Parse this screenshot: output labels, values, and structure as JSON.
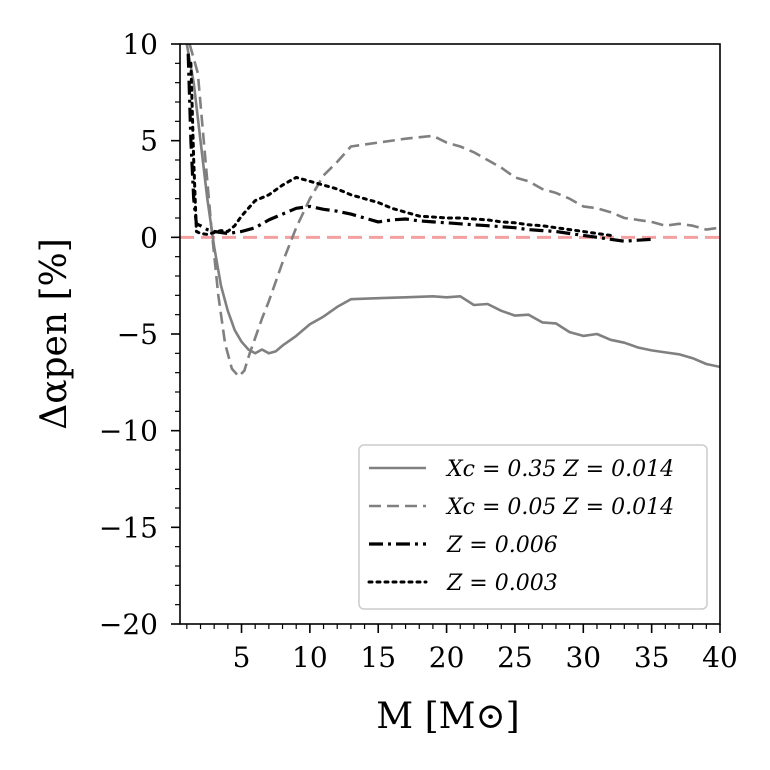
{
  "chart_data": {
    "type": "line",
    "xlabel": "M [M⊙]",
    "ylabel": "Δαpen [%]",
    "xlim": [
      0.5,
      40
    ],
    "ylim": [
      -20,
      10
    ],
    "xticks": [
      5,
      10,
      15,
      20,
      25,
      30,
      35,
      40
    ],
    "yticks": [
      -20,
      -15,
      -10,
      -5,
      0,
      5,
      10
    ],
    "xtick_labels": [
      "5",
      "10",
      "15",
      "20",
      "25",
      "30",
      "35",
      "40"
    ],
    "ytick_labels": [
      "−20",
      "−15",
      "−10",
      "−5",
      "0",
      "5",
      "10"
    ],
    "reference_line": {
      "y": 0,
      "color": "#f4a0a0",
      "style": "dashed"
    },
    "legend_position": "lower-right",
    "series": [
      {
        "name": "Xc = 0.35 Z = 0.014",
        "color": "#808080",
        "style": "solid",
        "x": [
          1.0,
          1.5,
          2.0,
          2.5,
          3.0,
          3.5,
          4.0,
          4.5,
          5.0,
          5.5,
          6.0,
          6.5,
          7.0,
          7.5,
          8.0,
          9.0,
          10.0,
          11.0,
          12.0,
          13.0,
          15.0,
          17.0,
          19.0,
          20.0,
          21.0,
          22.0,
          23.0,
          24.0,
          25.0,
          26.0,
          27.0,
          28.0,
          29.0,
          30.0,
          31.0,
          32.0,
          33.0,
          34.0,
          35.0,
          36.0,
          37.0,
          38.0,
          39.0,
          40.0
        ],
        "y": [
          10.0,
          8.0,
          5.0,
          2.0,
          -0.5,
          -2.5,
          -3.8,
          -4.8,
          -5.4,
          -5.8,
          -6.0,
          -5.8,
          -6.0,
          -5.9,
          -5.6,
          -5.1,
          -4.5,
          -4.1,
          -3.6,
          -3.2,
          -3.15,
          -3.1,
          -3.05,
          -3.1,
          -3.05,
          -3.5,
          -3.45,
          -3.8,
          -4.05,
          -4.0,
          -4.4,
          -4.45,
          -4.9,
          -5.1,
          -5.0,
          -5.3,
          -5.45,
          -5.7,
          -5.85,
          -5.95,
          -6.05,
          -6.25,
          -6.55,
          -6.7
        ]
      },
      {
        "name": "Xc = 0.05 Z = 0.014",
        "color": "#808080",
        "style": "dashed",
        "x": [
          1.2,
          1.8,
          2.3,
          2.8,
          3.3,
          3.8,
          4.3,
          4.8,
          5.2,
          5.6,
          6.0,
          6.5,
          7.0,
          8.0,
          9.0,
          10.0,
          11.0,
          12.0,
          13.0,
          15.0,
          17.0,
          19.0,
          20.0,
          21.0,
          22.0,
          23.0,
          24.0,
          25.0,
          26.0,
          27.0,
          28.0,
          29.0,
          30.0,
          31.0,
          32.0,
          33.0,
          34.0,
          35.0,
          36.0,
          37.0,
          38.0,
          39.0,
          40.0
        ],
        "y": [
          10.0,
          8.5,
          4.5,
          0.5,
          -3.0,
          -5.5,
          -6.8,
          -7.2,
          -6.9,
          -6.0,
          -5.2,
          -4.2,
          -3.3,
          -1.3,
          0.5,
          2.0,
          3.2,
          3.9,
          4.7,
          4.9,
          5.1,
          5.25,
          4.9,
          4.7,
          4.4,
          4.0,
          3.6,
          3.1,
          2.9,
          2.5,
          2.3,
          2.0,
          1.6,
          1.5,
          1.3,
          1.0,
          0.9,
          0.8,
          0.6,
          0.7,
          0.6,
          0.4,
          0.5
        ]
      },
      {
        "name": "Z = 0.006",
        "color": "#000000",
        "style": "dashdot",
        "x": [
          1.1,
          1.3,
          1.5,
          1.7,
          2.0,
          2.5,
          3.0,
          3.5,
          4.0,
          5.0,
          6.0,
          7.0,
          8.0,
          9.0,
          10.0,
          11.0,
          12.0,
          13.0,
          14.0,
          15.0,
          16.0,
          17.0,
          18.0,
          19.0,
          20.0,
          21.0,
          22.0,
          23.0,
          24.0,
          25.0,
          26.0,
          27.0,
          28.0,
          29.0,
          30.0,
          31.0,
          32.0,
          33.0,
          34.0,
          35.0
        ],
        "y": [
          9.5,
          5.0,
          2.0,
          0.7,
          0.6,
          0.4,
          0.3,
          0.25,
          0.2,
          0.3,
          0.5,
          0.9,
          1.2,
          1.5,
          1.6,
          1.45,
          1.35,
          1.2,
          1.0,
          0.8,
          0.9,
          0.95,
          0.85,
          0.8,
          0.75,
          0.7,
          0.65,
          0.6,
          0.55,
          0.5,
          0.4,
          0.35,
          0.3,
          0.2,
          0.1,
          0.0,
          -0.1,
          -0.2,
          -0.15,
          -0.1
        ]
      },
      {
        "name": "Z = 0.003",
        "color": "#000000",
        "style": "dotted",
        "x": [
          1.3,
          1.5,
          1.7,
          2.0,
          2.5,
          3.0,
          3.5,
          4.0,
          4.5,
          5.0,
          6.0,
          7.0,
          8.0,
          9.0,
          10.0,
          11.0,
          12.0,
          13.0,
          14.0,
          15.0,
          16.0,
          17.0,
          18.0,
          19.0,
          20.0,
          21.0,
          22.0,
          23.0,
          24.0,
          25.0,
          26.0,
          27.0,
          28.0,
          29.0,
          30.0,
          31.0,
          32.0
        ],
        "y": [
          9.0,
          4.0,
          0.3,
          0.2,
          0.15,
          0.25,
          0.35,
          0.3,
          0.6,
          1.1,
          1.9,
          2.2,
          2.7,
          3.1,
          2.9,
          2.7,
          2.5,
          2.2,
          2.0,
          1.8,
          1.5,
          1.3,
          1.1,
          1.05,
          1.0,
          1.0,
          0.95,
          0.9,
          0.8,
          0.75,
          0.65,
          0.6,
          0.5,
          0.4,
          0.3,
          0.2,
          0.1
        ]
      }
    ]
  }
}
